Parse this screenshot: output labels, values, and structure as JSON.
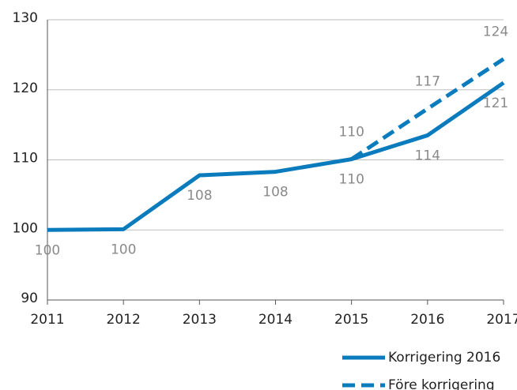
{
  "chart_data": {
    "type": "line",
    "categories": [
      "2011",
      "2012",
      "2013",
      "2014",
      "2015",
      "2016",
      "2017"
    ],
    "series": [
      {
        "name": "Korrigering 2016",
        "color": "#0a7bbd",
        "dash": false,
        "values": [
          100,
          100.1,
          107.8,
          108.3,
          110.1,
          113.5,
          121.0
        ],
        "value_labels": [
          "100",
          "100",
          "108",
          "108",
          "110",
          "114",
          "121"
        ],
        "label_side": "below"
      },
      {
        "name": "Före korrigering",
        "color": "#0a7bbd",
        "dash": true,
        "values": [
          null,
          null,
          null,
          null,
          110.1,
          117.3,
          124.4
        ],
        "value_labels": [
          null,
          null,
          null,
          null,
          "110",
          "117",
          "124"
        ],
        "label_side": "above"
      }
    ],
    "ylim": [
      90,
      130
    ],
    "yticks": [
      90,
      100,
      110,
      120,
      130
    ],
    "grid": true,
    "legend": "bottom-right"
  }
}
